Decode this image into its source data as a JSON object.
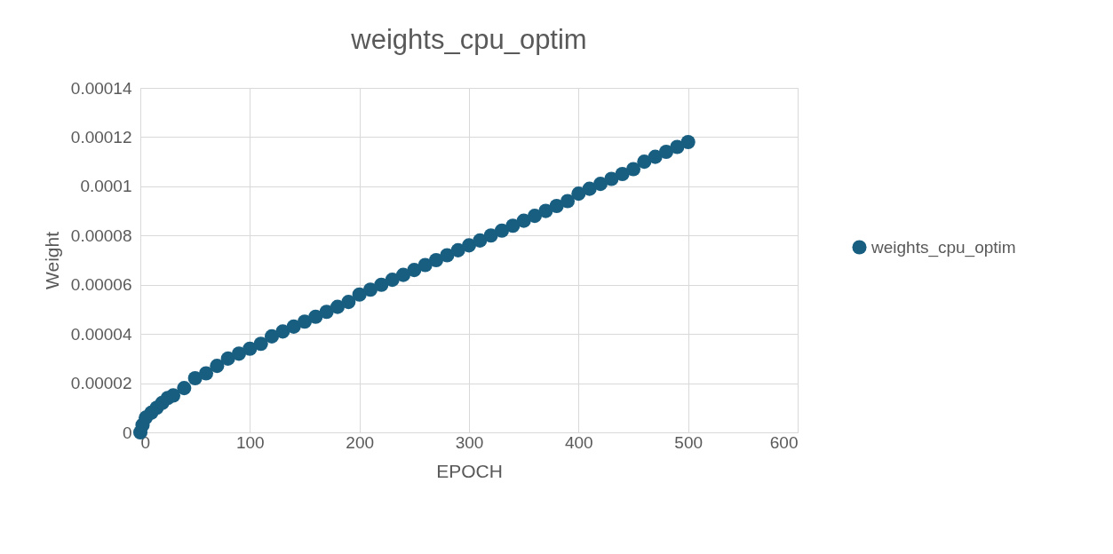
{
  "chart_data": {
    "type": "scatter",
    "title": "weights_cpu_optim",
    "xlabel": "EPOCH",
    "ylabel": "Weight",
    "series": [
      {
        "name": "weights_cpu_optim",
        "color": "#185e80",
        "x": [
          0,
          2,
          5,
          10,
          15,
          20,
          25,
          30,
          40,
          50,
          60,
          70,
          80,
          90,
          100,
          110,
          120,
          130,
          140,
          150,
          160,
          170,
          180,
          190,
          200,
          210,
          220,
          230,
          240,
          250,
          260,
          270,
          280,
          290,
          300,
          310,
          320,
          330,
          340,
          350,
          360,
          370,
          380,
          390,
          400,
          410,
          420,
          430,
          440,
          450,
          460,
          470,
          480,
          490,
          500
        ],
        "values": [
          0.0,
          3e-06,
          6e-06,
          8e-06,
          1e-05,
          1.2e-05,
          1.4e-05,
          1.5e-05,
          1.8e-05,
          2.2e-05,
          2.4e-05,
          2.7e-05,
          3e-05,
          3.2e-05,
          3.4e-05,
          3.6e-05,
          3.9e-05,
          4.1e-05,
          4.3e-05,
          4.5e-05,
          4.7e-05,
          4.9e-05,
          5.1e-05,
          5.3e-05,
          5.6e-05,
          5.8e-05,
          6e-05,
          6.2e-05,
          6.4e-05,
          6.6e-05,
          6.8e-05,
          7e-05,
          7.2e-05,
          7.4e-05,
          7.6e-05,
          7.8e-05,
          8e-05,
          8.2e-05,
          8.4e-05,
          8.6e-05,
          8.8e-05,
          9e-05,
          9.2e-05,
          9.4e-05,
          9.7e-05,
          9.9e-05,
          0.000101,
          0.000103,
          0.000105,
          0.000107,
          0.00011,
          0.000112,
          0.000114,
          0.000116,
          0.000118
        ]
      }
    ],
    "xlim": [
      0,
      600
    ],
    "xticks": [
      0,
      100,
      200,
      300,
      400,
      500,
      600
    ],
    "ylim": [
      0,
      0.00014
    ],
    "yticks": [
      0,
      {
        "value": 2e-05,
        "label": "0.00002"
      },
      {
        "value": 4e-05,
        "label": "0.00004"
      },
      {
        "value": 6e-05,
        "label": "0.00006"
      },
      {
        "value": 8e-05,
        "label": "0.00008"
      },
      {
        "value": 0.0001,
        "label": "0.0001"
      },
      {
        "value": 0.00012,
        "label": "0.00012"
      },
      {
        "value": 0.00014,
        "label": "0.00014"
      }
    ],
    "grid": true,
    "legend": "right",
    "marker": "circle"
  }
}
